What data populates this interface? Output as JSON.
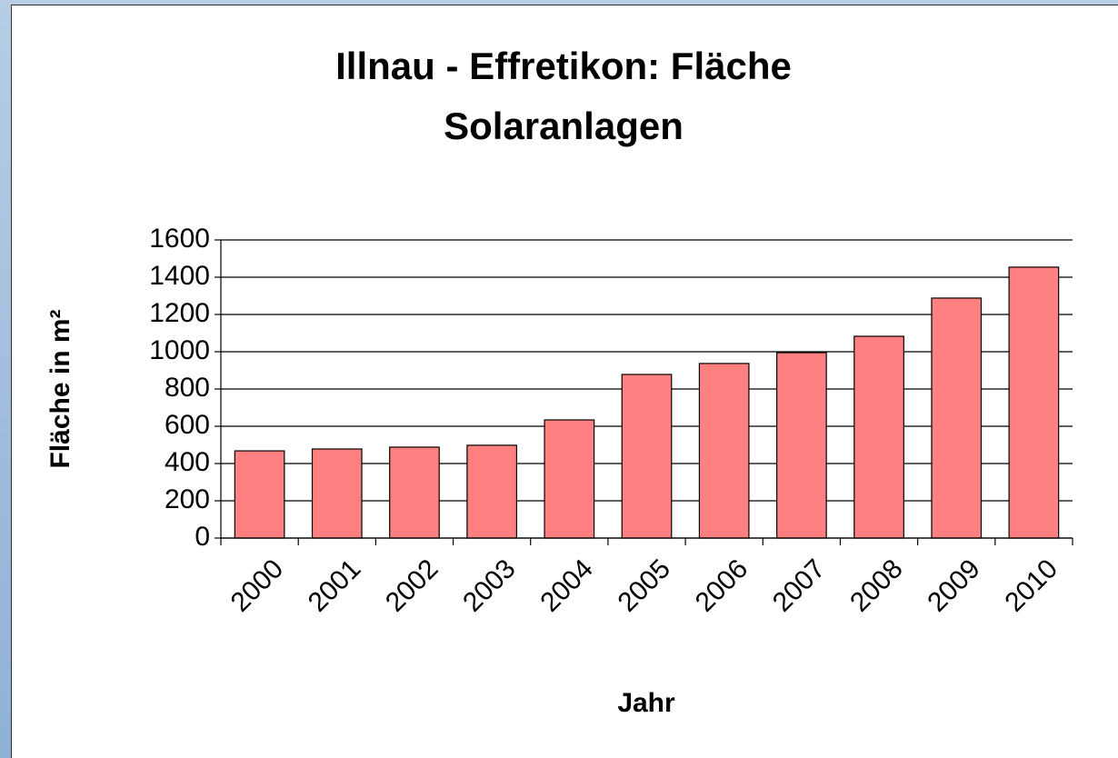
{
  "chart_data": {
    "type": "bar",
    "title": "Illnau - Effretikon: Fläche Solaranlagen",
    "x_label": "Jahr",
    "y_label": "Fläche in m²",
    "categories": [
      "2000",
      "2001",
      "2002",
      "2003",
      "2004",
      "2005",
      "2006",
      "2007",
      "2008",
      "2009",
      "2010"
    ],
    "values": [
      468,
      478,
      488,
      498,
      634,
      878,
      937,
      995,
      1083,
      1288,
      1454
    ],
    "color": "#ff8080",
    "ylim": [
      0,
      1600
    ],
    "yticks": [
      0,
      200,
      400,
      600,
      800,
      1000,
      1200,
      1400,
      1600
    ],
    "grid": true
  }
}
